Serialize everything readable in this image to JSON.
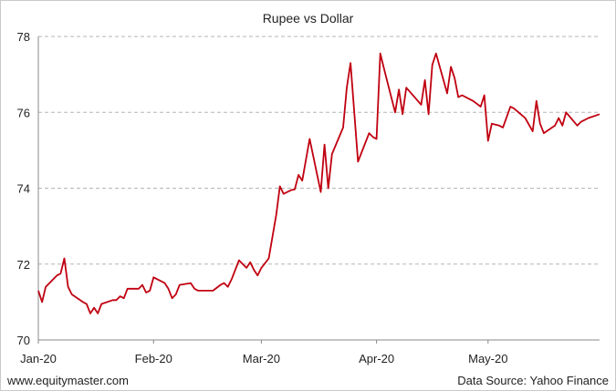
{
  "chart_data": {
    "type": "line",
    "title": "Rupee vs Dollar",
    "xlabel": "",
    "ylabel": "",
    "ylim": [
      70,
      78
    ],
    "yticks": [
      70,
      72,
      74,
      76,
      78
    ],
    "x_tick_labels": [
      "Jan-20",
      "Feb-20",
      "Mar-20",
      "Apr-20",
      "May-20"
    ],
    "x_tick_dates": [
      "2020-01-01",
      "2020-02-01",
      "2020-03-01",
      "2020-04-01",
      "2020-05-01"
    ],
    "xlim": [
      "2020-01-01",
      "2020-05-31"
    ],
    "grid": "horizontal dashed",
    "series": [
      {
        "color": "#c00010",
        "points": [
          [
            "2020-01-01",
            71.3
          ],
          [
            "2020-01-02",
            71.0
          ],
          [
            "2020-01-03",
            71.4
          ],
          [
            "2020-01-06",
            71.7
          ],
          [
            "2020-01-07",
            71.75
          ],
          [
            "2020-01-08",
            72.15
          ],
          [
            "2020-01-09",
            71.4
          ],
          [
            "2020-01-10",
            71.2
          ],
          [
            "2020-01-13",
            71.0
          ],
          [
            "2020-01-14",
            70.95
          ],
          [
            "2020-01-15",
            70.7
          ],
          [
            "2020-01-16",
            70.85
          ],
          [
            "2020-01-17",
            70.7
          ],
          [
            "2020-01-18",
            70.95
          ],
          [
            "2020-01-21",
            71.05
          ],
          [
            "2020-01-22",
            71.05
          ],
          [
            "2020-01-23",
            71.15
          ],
          [
            "2020-01-24",
            71.1
          ],
          [
            "2020-01-25",
            71.35
          ],
          [
            "2020-01-28",
            71.35
          ],
          [
            "2020-01-29",
            71.45
          ],
          [
            "2020-01-30",
            71.25
          ],
          [
            "2020-01-31",
            71.3
          ],
          [
            "2020-02-01",
            71.65
          ],
          [
            "2020-02-04",
            71.5
          ],
          [
            "2020-02-05",
            71.35
          ],
          [
            "2020-02-06",
            71.1
          ],
          [
            "2020-02-07",
            71.2
          ],
          [
            "2020-02-08",
            71.45
          ],
          [
            "2020-02-11",
            71.5
          ],
          [
            "2020-02-12",
            71.35
          ],
          [
            "2020-02-13",
            71.3
          ],
          [
            "2020-02-14",
            71.3
          ],
          [
            "2020-02-17",
            71.3
          ],
          [
            "2020-02-19",
            71.45
          ],
          [
            "2020-02-20",
            71.5
          ],
          [
            "2020-02-21",
            71.4
          ],
          [
            "2020-02-22",
            71.6
          ],
          [
            "2020-02-24",
            72.1
          ],
          [
            "2020-02-25",
            72.0
          ],
          [
            "2020-02-26",
            71.9
          ],
          [
            "2020-02-27",
            72.05
          ],
          [
            "2020-02-28",
            71.85
          ],
          [
            "2020-02-29",
            71.7
          ],
          [
            "2020-03-01",
            71.9
          ],
          [
            "2020-03-03",
            72.15
          ],
          [
            "2020-03-05",
            73.3
          ],
          [
            "2020-03-06",
            74.05
          ],
          [
            "2020-03-07",
            73.85
          ],
          [
            "2020-03-09",
            73.95
          ],
          [
            "2020-03-10",
            73.97
          ],
          [
            "2020-03-11",
            74.35
          ],
          [
            "2020-03-12",
            74.2
          ],
          [
            "2020-03-14",
            75.3
          ],
          [
            "2020-03-17",
            73.9
          ],
          [
            "2020-03-18",
            75.15
          ],
          [
            "2020-03-19",
            74.0
          ],
          [
            "2020-03-20",
            74.9
          ],
          [
            "2020-03-23",
            75.6
          ],
          [
            "2020-03-24",
            76.65
          ],
          [
            "2020-03-25",
            77.3
          ],
          [
            "2020-03-27",
            74.7
          ],
          [
            "2020-03-28",
            74.95
          ],
          [
            "2020-03-30",
            75.45
          ],
          [
            "2020-03-31",
            75.35
          ],
          [
            "2020-04-01",
            75.3
          ],
          [
            "2020-04-02",
            77.55
          ],
          [
            "2020-04-03",
            77.15
          ],
          [
            "2020-04-06",
            76.0
          ],
          [
            "2020-04-07",
            76.6
          ],
          [
            "2020-04-08",
            75.95
          ],
          [
            "2020-04-09",
            76.65
          ],
          [
            "2020-04-13",
            76.2
          ],
          [
            "2020-04-14",
            76.85
          ],
          [
            "2020-04-15",
            75.95
          ],
          [
            "2020-04-16",
            77.25
          ],
          [
            "2020-04-17",
            77.55
          ],
          [
            "2020-04-20",
            76.5
          ],
          [
            "2020-04-21",
            77.2
          ],
          [
            "2020-04-22",
            76.9
          ],
          [
            "2020-04-23",
            76.4
          ],
          [
            "2020-04-24",
            76.45
          ],
          [
            "2020-04-27",
            76.3
          ],
          [
            "2020-04-29",
            76.15
          ],
          [
            "2020-04-30",
            76.45
          ],
          [
            "2020-05-01",
            75.25
          ],
          [
            "2020-05-02",
            75.7
          ],
          [
            "2020-05-04",
            75.65
          ],
          [
            "2020-05-05",
            75.6
          ],
          [
            "2020-05-07",
            76.15
          ],
          [
            "2020-05-08",
            76.1
          ],
          [
            "2020-05-11",
            75.85
          ],
          [
            "2020-05-13",
            75.5
          ],
          [
            "2020-05-14",
            76.3
          ],
          [
            "2020-05-15",
            75.7
          ],
          [
            "2020-05-16",
            75.45
          ],
          [
            "2020-05-19",
            75.65
          ],
          [
            "2020-05-20",
            75.85
          ],
          [
            "2020-05-21",
            75.65
          ],
          [
            "2020-05-22",
            76.0
          ],
          [
            "2020-05-25",
            75.65
          ],
          [
            "2020-05-26",
            75.75
          ],
          [
            "2020-05-28",
            75.85
          ],
          [
            "2020-05-31",
            75.95
          ]
        ]
      }
    ]
  },
  "footer": {
    "website": "www.equitymaster.com",
    "source": "Data Source: Yahoo Finance"
  }
}
